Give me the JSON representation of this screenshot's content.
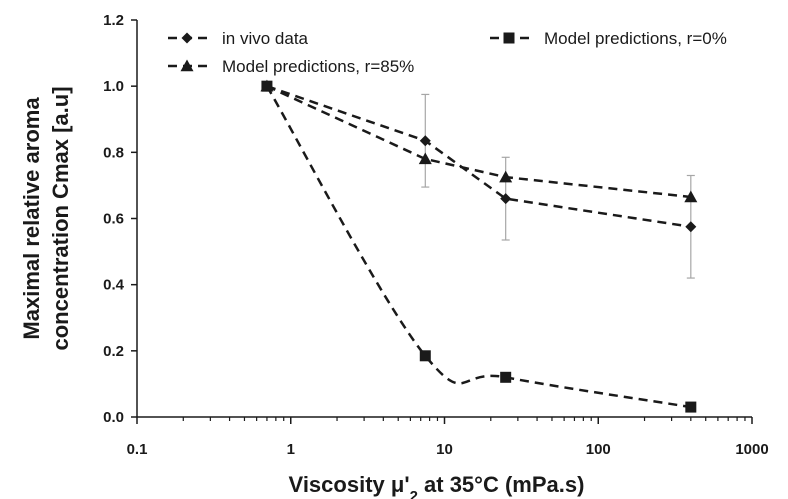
{
  "chart_data": {
    "type": "line",
    "x_scale": "log",
    "xlim": [
      0.1,
      1000
    ],
    "ylim": [
      0,
      1.2
    ],
    "x_ticks": [
      "0.1",
      "1",
      "10",
      "100",
      "1000"
    ],
    "y_ticks": [
      "0.0",
      "0.2",
      "0.4",
      "0.6",
      "0.8",
      "1.0",
      "1.2"
    ],
    "xlabel_parts": {
      "prefix": "Viscosity μ'",
      "subscript": "2",
      "suffix": " at 35°C (mPa.s)"
    },
    "ylabel_lines": [
      "Maximal relative aroma",
      "concentration Cmax  [a.u]"
    ],
    "grid": false,
    "legend_position": "top",
    "series": [
      {
        "name": "in vivo data",
        "marker": "diamond",
        "x": [
          0.7,
          7.5,
          25,
          400
        ],
        "y": [
          1.0,
          0.835,
          0.66,
          0.575
        ],
        "error": [
          0,
          0.14,
          0.125,
          0.155
        ]
      },
      {
        "name": "Model predictions, r=0%",
        "marker": "square",
        "x": [
          0.7,
          7.5,
          25,
          400
        ],
        "y": [
          1.0,
          0.185,
          0.12,
          0.03
        ]
      },
      {
        "name": "Model predictions, r=85%",
        "marker": "triangle",
        "x": [
          0.7,
          7.5,
          25,
          400
        ],
        "y": [
          1.0,
          0.78,
          0.725,
          0.665
        ]
      }
    ],
    "colors": {
      "line": "#1a1a1a",
      "error_bar": "#a6a6a6"
    }
  }
}
